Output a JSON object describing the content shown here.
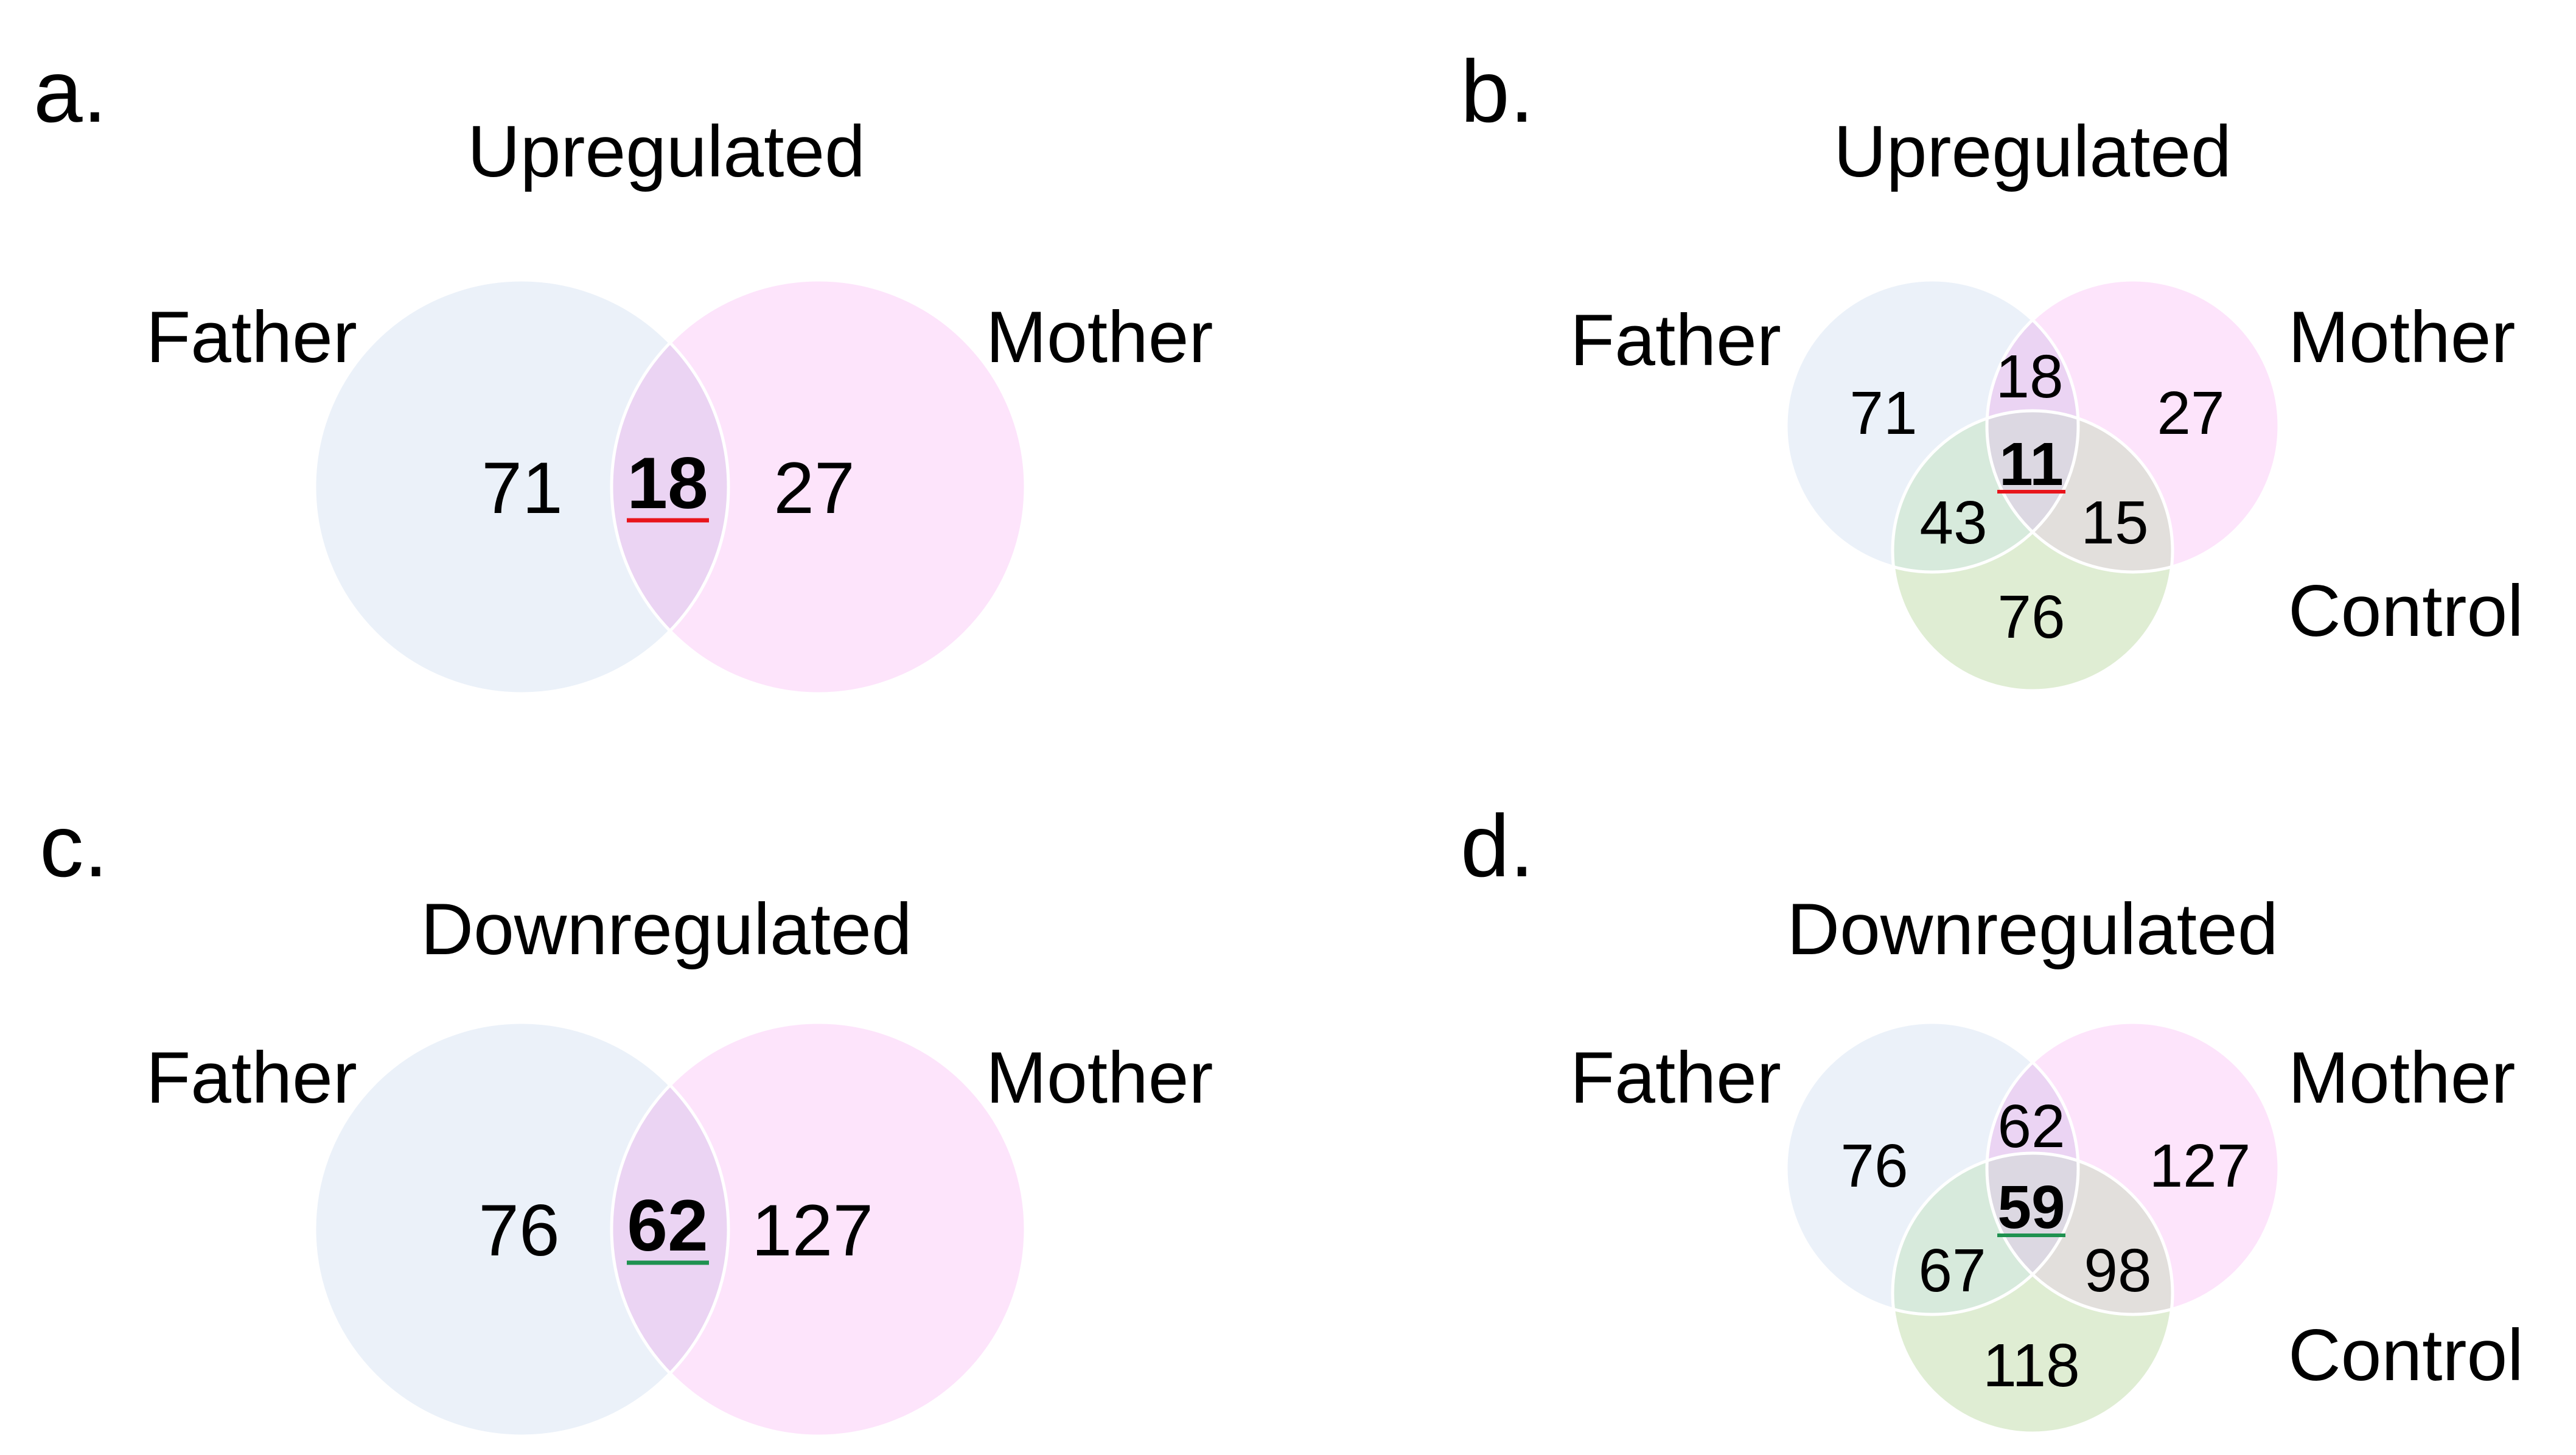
{
  "colors": {
    "father": "#ebf1f9",
    "mother": "#fde4fb",
    "control": "#dfedd3",
    "highlight_up": "#e8141b",
    "highlight_down": "#1f9150"
  },
  "panels": {
    "a": {
      "letter": "a.",
      "title": "Upregulated",
      "labels": {
        "father": "Father",
        "mother": "Mother"
      },
      "values": {
        "father_only": "71",
        "shared": "18",
        "mother_only": "27"
      }
    },
    "b": {
      "letter": "b.",
      "title": "Upregulated",
      "labels": {
        "father": "Father",
        "mother": "Mother",
        "control": "Control"
      },
      "values": {
        "father_only": "71",
        "father_mother": "18",
        "mother_only": "27",
        "all_three": "11",
        "father_control": "43",
        "mother_control": "15",
        "control_only": "76"
      }
    },
    "c": {
      "letter": "c.",
      "title": "Downregulated",
      "labels": {
        "father": "Father",
        "mother": "Mother"
      },
      "values": {
        "father_only": "76",
        "shared": "62",
        "mother_only": "127"
      }
    },
    "d": {
      "letter": "d.",
      "title": "Downregulated",
      "labels": {
        "father": "Father",
        "mother": "Mother",
        "control": "Control"
      },
      "values": {
        "father_only": "76",
        "father_mother": "62",
        "mother_only": "127",
        "all_three": "59",
        "father_control": "67",
        "mother_control": "98",
        "control_only": "118"
      }
    }
  }
}
